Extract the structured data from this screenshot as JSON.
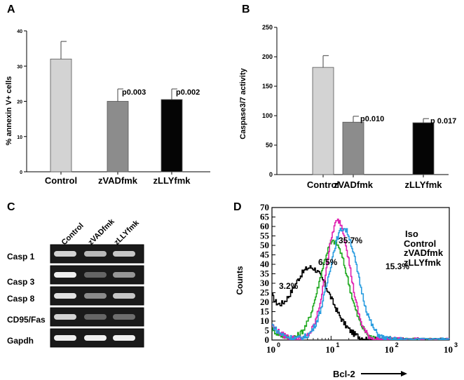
{
  "figure": {
    "colors": {
      "control_bar": "#d3d3d3",
      "zvad_bar": "#8c8c8c",
      "zlly_bar": "#050505",
      "iso": "#000000",
      "control": "#22aa22",
      "zvad": "#e020b0",
      "zlly": "#2a9de0",
      "pct_control": "#22aa22",
      "pct_zvad": "#cc1fa8",
      "pct_zlly": "#1b3fae"
    }
  },
  "chart_data": [
    {
      "panel": "A",
      "type": "bar",
      "ylabel": "% annexin V+ cells",
      "ylim": [
        0,
        40
      ],
      "yticks": [
        "0",
        "10",
        "20",
        "30",
        "40"
      ],
      "categories": [
        "Control",
        "zVADfmk",
        "zLLYfmk"
      ],
      "values": [
        32,
        20,
        20.5
      ],
      "errors": [
        5,
        3.5,
        3
      ],
      "pvalues": [
        "",
        "p0.003",
        "p0.002"
      ]
    },
    {
      "panel": "B",
      "type": "bar",
      "ylabel": "Caspase3/7 activity",
      "ylim": [
        0,
        250
      ],
      "yticks": [
        "0",
        "50",
        "100",
        "150",
        "200",
        "250"
      ],
      "categories": [
        "Control",
        "zVADfmk",
        "zLLYfmk"
      ],
      "values": [
        182,
        89,
        88
      ],
      "errors": [
        20,
        10,
        7
      ],
      "pvalues": [
        "",
        "p0.010",
        "p 0.017"
      ]
    },
    {
      "panel": "D",
      "type": "line",
      "title": "",
      "xlabel": "Bcl-2",
      "ylabel": "Counts",
      "xscale": "log",
      "xlim": [
        1,
        1000
      ],
      "ylim": [
        0,
        70
      ],
      "xticks": [
        "10",
        "10",
        "10",
        "10"
      ],
      "xtick_exponents": [
        "0",
        "1",
        "2",
        "3"
      ],
      "yticks": [
        "0",
        "5",
        "10",
        "15",
        "20",
        "25",
        "30",
        "35",
        "40",
        "45",
        "50",
        "55",
        "60",
        "65",
        "70"
      ],
      "legend": [
        "Iso",
        "Control",
        "zVADfmk",
        "zLLYfmk"
      ],
      "annotations": [
        "3.2%",
        "6.5%",
        "35.7%",
        "15.3%"
      ],
      "series": [
        {
          "name": "Iso",
          "peak_x": 4.5,
          "peak_y": 38,
          "width": 0.33,
          "tail": 18
        },
        {
          "name": "Control",
          "peak_x": 11,
          "peak_y": 52,
          "width": 0.24,
          "tail": 6
        },
        {
          "name": "zVADfmk",
          "peak_x": 13,
          "peak_y": 63,
          "width": 0.2,
          "tail": 8
        },
        {
          "name": "zLLYfmk",
          "peak_x": 16,
          "peak_y": 59,
          "width": 0.24,
          "tail": 8
        }
      ]
    }
  ],
  "panels": {
    "a": {
      "letter": "A"
    },
    "b": {
      "letter": "B"
    },
    "c": {
      "letter": "C",
      "lanes": [
        "Control",
        "zVADfmk",
        "zLLYfmk"
      ],
      "rows": [
        {
          "label": "Casp 1",
          "intensity": [
            0.85,
            0.75,
            0.8
          ]
        },
        {
          "label": "Casp 3",
          "intensity": [
            0.95,
            0.35,
            0.6
          ]
        },
        {
          "label": "Casp 8",
          "intensity": [
            0.9,
            0.55,
            0.8
          ]
        },
        {
          "label": "CD95/Fas",
          "intensity": [
            0.85,
            0.35,
            0.4
          ]
        },
        {
          "label": "Gapdh",
          "intensity": [
            0.95,
            0.95,
            0.95
          ]
        }
      ]
    },
    "d": {
      "letter": "D",
      "arrow_label": "Bcl-2"
    }
  }
}
